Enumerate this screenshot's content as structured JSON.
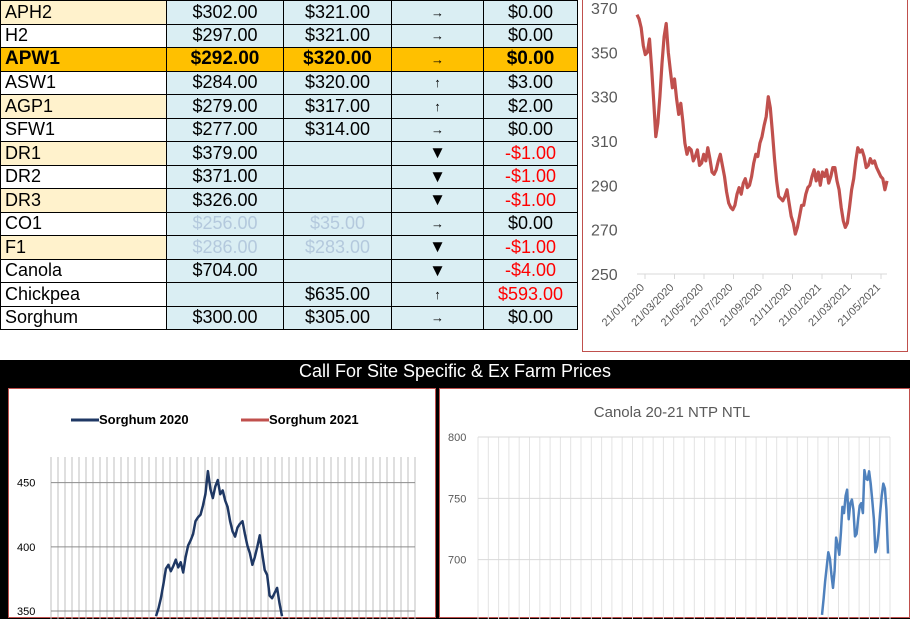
{
  "price_table": {
    "rows": [
      {
        "grade": "APH2",
        "price1": "$302.00",
        "price2": "$321.00",
        "trend": "→",
        "change": "$0.00",
        "neg": false,
        "alt": true
      },
      {
        "grade": "H2",
        "price1": "$297.00",
        "price2": "$321.00",
        "trend": "→",
        "change": "$0.00",
        "neg": false,
        "alt": false
      },
      {
        "grade": "APW1",
        "price1": "$292.00",
        "price2": "$320.00",
        "trend": "→",
        "change": "$0.00",
        "neg": false,
        "highlight": true
      },
      {
        "grade": "ASW1",
        "price1": "$284.00",
        "price2": "$320.00",
        "trend": "↑",
        "change": "$3.00",
        "neg": false,
        "alt": false
      },
      {
        "grade": "AGP1",
        "price1": "$279.00",
        "price2": "$317.00",
        "trend": "↑",
        "change": "$2.00",
        "neg": false,
        "alt": true
      },
      {
        "grade": "SFW1",
        "price1": "$277.00",
        "price2": "$314.00",
        "trend": "→",
        "change": "$0.00",
        "neg": false,
        "alt": false
      },
      {
        "grade": "DR1",
        "price1": "$379.00",
        "price2": "",
        "trend": "▼",
        "change": "-$1.00",
        "neg": true,
        "alt": true
      },
      {
        "grade": "DR2",
        "price1": "$371.00",
        "price2": "",
        "trend": "▼",
        "change": "-$1.00",
        "neg": true,
        "alt": false
      },
      {
        "grade": "DR3",
        "price1": "$326.00",
        "price2": "",
        "trend": "▼",
        "change": "-$1.00",
        "neg": true,
        "alt": true
      },
      {
        "grade": "CO1",
        "price1": "$256.00",
        "price2": "$35.00",
        "trend": "→",
        "change": "$0.00",
        "neg": false,
        "alt": false,
        "faded": true
      },
      {
        "grade": "F1",
        "price1": "$286.00",
        "price2": "$283.00",
        "trend": "▼",
        "change": "-$1.00",
        "neg": true,
        "alt": true,
        "faded": true
      },
      {
        "grade": "Canola",
        "price1": "$704.00",
        "price2": "",
        "trend": "▼",
        "change": "-$4.00",
        "neg": true,
        "alt": false
      },
      {
        "grade": "Chickpea",
        "price1": "",
        "price2": "$635.00",
        "trend": "↑",
        "change": "$593.00",
        "neg": true,
        "alt": false
      },
      {
        "grade": "Sorghum",
        "price1": "$300.00",
        "price2": "$305.00",
        "trend": "→",
        "change": "$0.00",
        "neg": false,
        "alt": false
      }
    ]
  },
  "banner": {
    "text": "Call For Site Specific & Ex Farm Prices"
  },
  "colors": {
    "red_line": "#c0504d",
    "navy_line": "#1f3864",
    "blue_line": "#4f81bd",
    "highlight": "#ffc000",
    "cell_blue": "#daeef3",
    "cell_yellow": "#fff2cc"
  },
  "chart_data": [
    {
      "type": "line",
      "title": "",
      "ylim": [
        250,
        370
      ],
      "yticks": [
        250,
        270,
        290,
        310,
        330,
        350,
        370
      ],
      "xticks": [
        "21/01/2020",
        "21/03/2020",
        "21/05/2020",
        "21/07/2020",
        "21/09/2020",
        "21/11/2020",
        "21/01/2021",
        "21/03/2021",
        "21/05/2021"
      ],
      "grid": false,
      "series": [
        {
          "name": "",
          "color": "#c0504d",
          "y": [
            367,
            365,
            361,
            353,
            349,
            350,
            356,
            343,
            328,
            312,
            318,
            330,
            345,
            357,
            363,
            350,
            342,
            334,
            338,
            329,
            322,
            327,
            319,
            309,
            304,
            307,
            306,
            301,
            303,
            306,
            299,
            300,
            304,
            301,
            307,
            302,
            296,
            295,
            297,
            301,
            304,
            299,
            294,
            287,
            282,
            280,
            279,
            281,
            286,
            289,
            286,
            291,
            293,
            289,
            290,
            294,
            300,
            304,
            303,
            309,
            312,
            317,
            321,
            330,
            325,
            314,
            302,
            292,
            285,
            284,
            283,
            285,
            288,
            282,
            276,
            273,
            268,
            271,
            276,
            281,
            281,
            286,
            289,
            290,
            294,
            297,
            292,
            296,
            290,
            296,
            294,
            297,
            291,
            294,
            298,
            298,
            292,
            288,
            280,
            274,
            271,
            273,
            280,
            288,
            293,
            301,
            307,
            305,
            306,
            303,
            298,
            299,
            302,
            300,
            301,
            298,
            296,
            294,
            293,
            288,
            292
          ]
        }
      ]
    },
    {
      "type": "line",
      "title": "",
      "ylim": [
        350,
        470
      ],
      "yticks": [
        350,
        400,
        450
      ],
      "grid": true,
      "legend_position": "top",
      "legend": [
        "Sorghum 2020",
        "Sorghum 2021"
      ],
      "series": [
        {
          "name": "Sorghum 2020",
          "color": "#1f3864",
          "y": [
            346,
            352,
            360,
            371,
            383,
            386,
            381,
            385,
            390,
            384,
            388,
            380,
            392,
            401,
            405,
            410,
            420,
            423,
            425,
            432,
            441,
            459,
            445,
            438,
            447,
            452,
            441,
            444,
            436,
            431,
            420,
            412,
            408,
            415,
            418,
            420,
            410,
            401,
            395,
            386,
            392,
            400,
            409,
            395,
            382,
            378,
            362,
            360,
            364,
            368,
            356,
            346
          ]
        },
        {
          "name": "Sorghum 2021",
          "color": "#c0504d",
          "y": []
        }
      ]
    },
    {
      "type": "line",
      "title": "Canola 20-21 NTP NTL",
      "ylim": [
        650,
        800
      ],
      "yticks": [
        700,
        750,
        800
      ],
      "grid": true,
      "series": [
        {
          "name": "",
          "color": "#4f81bd",
          "y": [
            655,
            668,
            682,
            694,
            706,
            701,
            688,
            677,
            691,
            718,
            712,
            704,
            722,
            743,
            738,
            752,
            757,
            733,
            746,
            749,
            741,
            719,
            721,
            733,
            744,
            746,
            738,
            773,
            766,
            765,
            772,
            762,
            748,
            733,
            706,
            711,
            722,
            738,
            752,
            762,
            758,
            741,
            705
          ]
        }
      ]
    }
  ]
}
